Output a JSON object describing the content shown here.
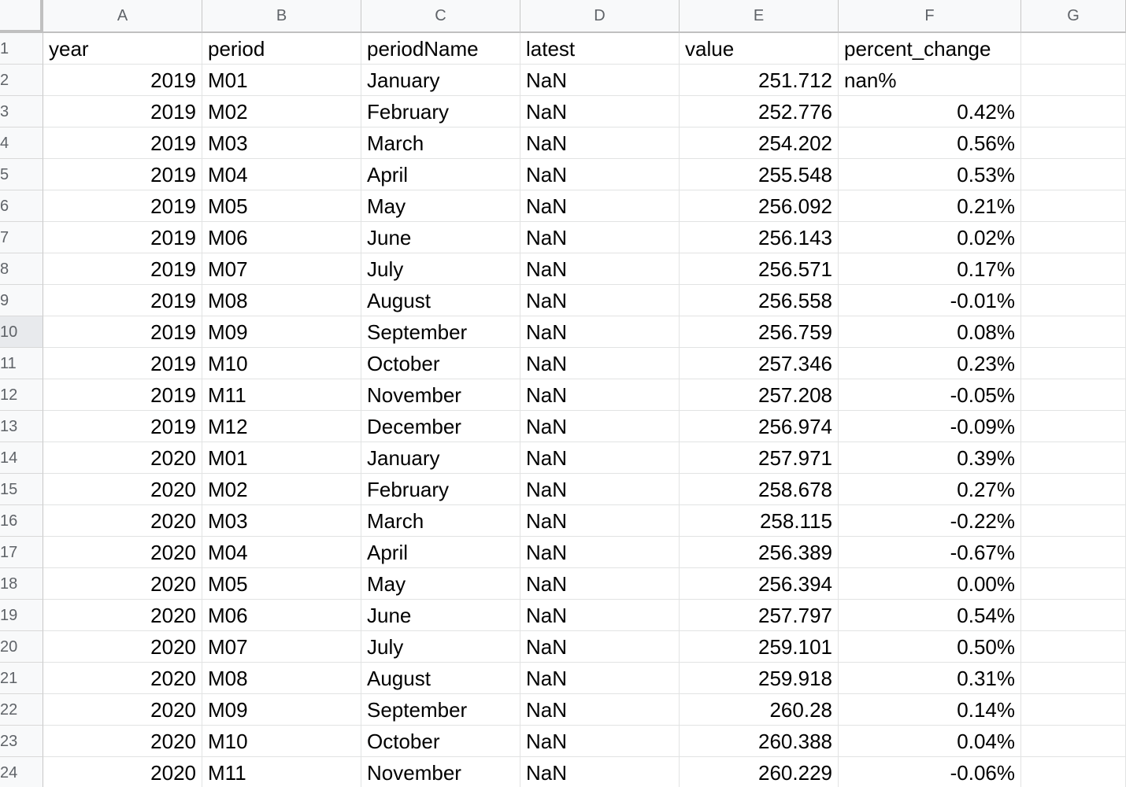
{
  "columns": [
    "A",
    "B",
    "C",
    "D",
    "E",
    "F",
    "G"
  ],
  "header_row": {
    "row_number": "1",
    "cells": [
      "year",
      "period",
      "periodName",
      "latest",
      "value",
      "percent_change",
      ""
    ]
  },
  "rows": [
    {
      "n": "2",
      "year": "2019",
      "period": "M01",
      "periodName": "January",
      "latest": "NaN",
      "value": "251.712",
      "percent_change": "nan%"
    },
    {
      "n": "3",
      "year": "2019",
      "period": "M02",
      "periodName": "February",
      "latest": "NaN",
      "value": "252.776",
      "percent_change": "0.42%"
    },
    {
      "n": "4",
      "year": "2019",
      "period": "M03",
      "periodName": "March",
      "latest": "NaN",
      "value": "254.202",
      "percent_change": "0.56%"
    },
    {
      "n": "5",
      "year": "2019",
      "period": "M04",
      "periodName": "April",
      "latest": "NaN",
      "value": "255.548",
      "percent_change": "0.53%"
    },
    {
      "n": "6",
      "year": "2019",
      "period": "M05",
      "periodName": "May",
      "latest": "NaN",
      "value": "256.092",
      "percent_change": "0.21%"
    },
    {
      "n": "7",
      "year": "2019",
      "period": "M06",
      "periodName": "June",
      "latest": "NaN",
      "value": "256.143",
      "percent_change": "0.02%"
    },
    {
      "n": "8",
      "year": "2019",
      "period": "M07",
      "periodName": "July",
      "latest": "NaN",
      "value": "256.571",
      "percent_change": "0.17%"
    },
    {
      "n": "9",
      "year": "2019",
      "period": "M08",
      "periodName": "August",
      "latest": "NaN",
      "value": "256.558",
      "percent_change": "-0.01%"
    },
    {
      "n": "10",
      "year": "2019",
      "period": "M09",
      "periodName": "September",
      "latest": "NaN",
      "value": "256.759",
      "percent_change": "0.08%"
    },
    {
      "n": "11",
      "year": "2019",
      "period": "M10",
      "periodName": "October",
      "latest": "NaN",
      "value": "257.346",
      "percent_change": "0.23%"
    },
    {
      "n": "12",
      "year": "2019",
      "period": "M11",
      "periodName": "November",
      "latest": "NaN",
      "value": "257.208",
      "percent_change": "-0.05%"
    },
    {
      "n": "13",
      "year": "2019",
      "period": "M12",
      "periodName": "December",
      "latest": "NaN",
      "value": "256.974",
      "percent_change": "-0.09%"
    },
    {
      "n": "14",
      "year": "2020",
      "period": "M01",
      "periodName": "January",
      "latest": "NaN",
      "value": "257.971",
      "percent_change": "0.39%"
    },
    {
      "n": "15",
      "year": "2020",
      "period": "M02",
      "periodName": "February",
      "latest": "NaN",
      "value": "258.678",
      "percent_change": "0.27%"
    },
    {
      "n": "16",
      "year": "2020",
      "period": "M03",
      "periodName": "March",
      "latest": "NaN",
      "value": "258.115",
      "percent_change": "-0.22%"
    },
    {
      "n": "17",
      "year": "2020",
      "period": "M04",
      "periodName": "April",
      "latest": "NaN",
      "value": "256.389",
      "percent_change": "-0.67%"
    },
    {
      "n": "18",
      "year": "2020",
      "period": "M05",
      "periodName": "May",
      "latest": "NaN",
      "value": "256.394",
      "percent_change": "0.00%"
    },
    {
      "n": "19",
      "year": "2020",
      "period": "M06",
      "periodName": "June",
      "latest": "NaN",
      "value": "257.797",
      "percent_change": "0.54%"
    },
    {
      "n": "20",
      "year": "2020",
      "period": "M07",
      "periodName": "July",
      "latest": "NaN",
      "value": "259.101",
      "percent_change": "0.50%"
    },
    {
      "n": "21",
      "year": "2020",
      "period": "M08",
      "periodName": "August",
      "latest": "NaN",
      "value": "259.918",
      "percent_change": "0.31%"
    },
    {
      "n": "22",
      "year": "2020",
      "period": "M09",
      "periodName": "September",
      "latest": "NaN",
      "value": "260.28",
      "percent_change": "0.14%"
    },
    {
      "n": "23",
      "year": "2020",
      "period": "M10",
      "periodName": "October",
      "latest": "NaN",
      "value": "260.388",
      "percent_change": "0.04%"
    },
    {
      "n": "24",
      "year": "2020",
      "period": "M11",
      "periodName": "November",
      "latest": "NaN",
      "value": "260.229",
      "percent_change": "-0.06%"
    }
  ],
  "selected_row": "10"
}
